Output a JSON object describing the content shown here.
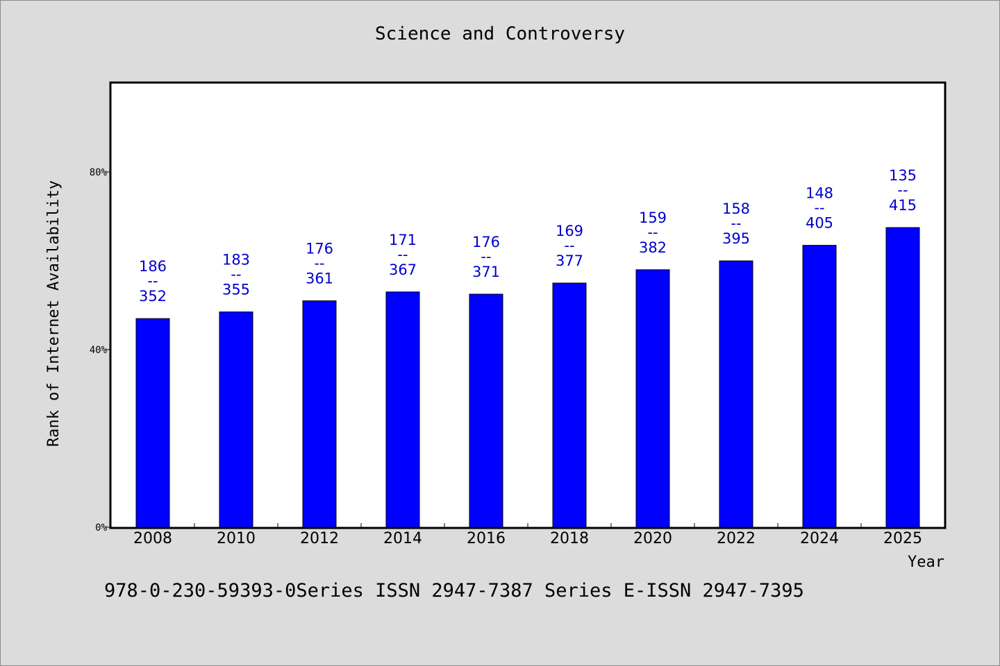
{
  "chart_data": {
    "type": "bar",
    "title": "Science and Controversy",
    "xlabel": "Year",
    "ylabel": "Rank of Internet Availability",
    "ylim": [
      0,
      100
    ],
    "yticks": [
      {
        "value": 0,
        "label": "0%"
      },
      {
        "value": 40,
        "label": "40%"
      },
      {
        "value": 80,
        "label": "80%"
      }
    ],
    "categories": [
      "2008",
      "2010",
      "2012",
      "2014",
      "2016",
      "2018",
      "2020",
      "2022",
      "2024",
      "2025"
    ],
    "values": [
      47,
      48.5,
      51,
      53,
      52.5,
      55,
      58,
      60,
      63.5,
      67.5
    ],
    "data_labels": [
      {
        "top": "186",
        "sep": "--",
        "bottom": "352"
      },
      {
        "top": "183",
        "sep": "--",
        "bottom": "355"
      },
      {
        "top": "176",
        "sep": "--",
        "bottom": "361"
      },
      {
        "top": "171",
        "sep": "--",
        "bottom": "367"
      },
      {
        "top": "176",
        "sep": "--",
        "bottom": "371"
      },
      {
        "top": "169",
        "sep": "--",
        "bottom": "377"
      },
      {
        "top": "159",
        "sep": "--",
        "bottom": "382"
      },
      {
        "top": "158",
        "sep": "--",
        "bottom": "395"
      },
      {
        "top": "148",
        "sep": "--",
        "bottom": "405"
      },
      {
        "top": "135",
        "sep": "--",
        "bottom": "415"
      }
    ],
    "bar_color": "#0000ff",
    "label_color": "#0000cc",
    "grid": false,
    "legend": "none"
  },
  "footer": {
    "text": "978-0-230-59393-0Series ISSN 2947-7387 Series E-ISSN 2947-7395"
  }
}
